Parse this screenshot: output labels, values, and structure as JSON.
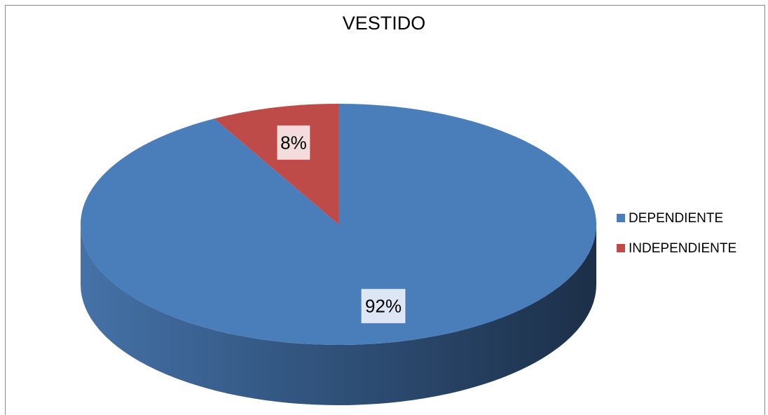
{
  "chart_data": {
    "type": "pie",
    "title": "VESTIDO",
    "categories": [
      "DEPENDIENTE",
      "INDEPENDIENTE"
    ],
    "values": [
      92,
      8
    ],
    "value_labels": [
      "92%",
      "8%"
    ],
    "colors": [
      "#4a7ebb",
      "#be4b48"
    ],
    "legend": "right"
  }
}
